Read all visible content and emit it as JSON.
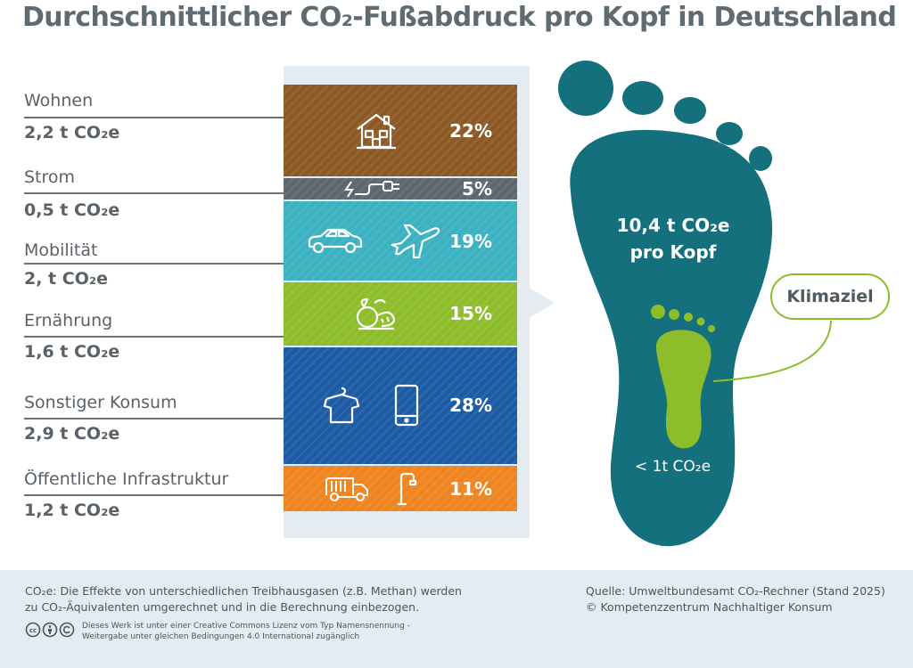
{
  "title": "Durchschnittlicher CO₂-Fußabdruck pro Kopf in Deutschland",
  "chart_data": {
    "type": "bar",
    "orientation": "stacked-vertical",
    "title": "Durchschnittlicher CO₂-Fußabdruck pro Kopf in Deutschland",
    "categories": [
      "Wohnen",
      "Strom",
      "Mobilität",
      "Ernährung",
      "Sonstiger Konsum",
      "Öffentliche Infrastruktur"
    ],
    "values": [
      22,
      5,
      19,
      15,
      28,
      11
    ],
    "value_labels": [
      "22%",
      "5%",
      "19%",
      "15%",
      "28%",
      "11%"
    ],
    "amounts": [
      "2,2 t CO₂e",
      "0,5 t CO₂e",
      "2, t CO₂e",
      "1,6 t CO₂e",
      "2,9 t CO₂e",
      "1,2 t CO₂e"
    ],
    "colors": [
      "#8d5a25",
      "#5c6770",
      "#3bb1c1",
      "#8dbd2a",
      "#1d5ca4",
      "#ef8521"
    ],
    "icons": [
      [
        "house-icon"
      ],
      [
        "plug-icon"
      ],
      [
        "car-icon",
        "airplane-icon"
      ],
      [
        "food-icon"
      ],
      [
        "shirt-icon",
        "smartphone-icon"
      ],
      [
        "garbage-truck-icon",
        "street-lamp-icon"
      ]
    ]
  },
  "footprint": {
    "total_line1": "10,4 t CO₂e",
    "total_line2": "pro Kopf",
    "target_label": "Klimaziel",
    "target_value": "< 1t CO₂e",
    "big_color": "#15707e",
    "small_color": "#8dbd2a"
  },
  "footer": {
    "note_line1": "CO₂e: Die Effekte von unterschiedlichen Treibhausgasen (z.B. Methan) werden",
    "note_line2": "zu CO₂-Äquivalenten umgerechnet und in die Berechnung einbezogen.",
    "source_line1": "Quelle: Umweltbundesamt CO₂-Rechner (Stand 2025)",
    "source_line2": "© Kompetenzzentrum Nachhaltiger Konsum",
    "license_line1": "Dieses Werk ist unter einer Creative Commons Lizenz vom Typ Namensnennung -",
    "license_line2": "Weitergabe unter gleichen Bedingungen 4.0 International zugänglich",
    "license_icons": [
      "cc-icon",
      "by-icon",
      "sa-icon"
    ]
  }
}
